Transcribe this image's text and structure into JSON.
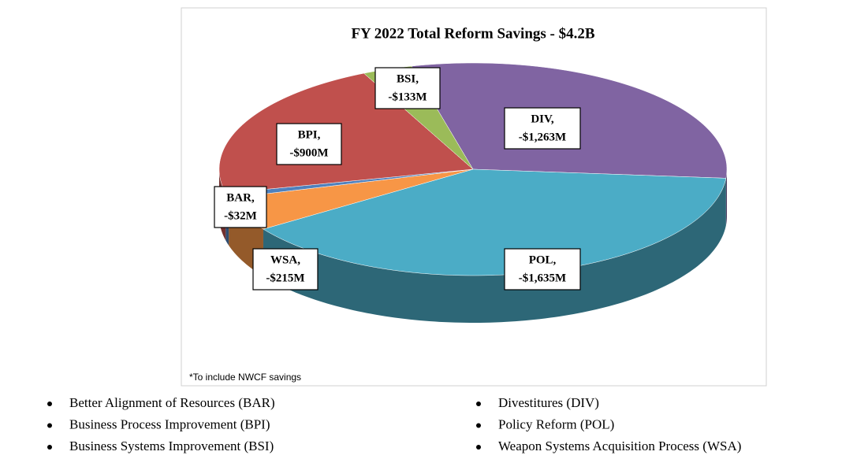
{
  "chart_data": {
    "type": "pie",
    "title": "FY 2022 Total Reform Savings - $4.2B",
    "note": "*To include NWCF savings",
    "categories": [
      "DIV,",
      "POL,",
      "WSA,",
      "BAR,",
      "BPI,",
      "BSI,"
    ],
    "values": [
      -1263,
      -1635,
      -215,
      -32,
      -900,
      -133
    ],
    "value_labels": [
      "-$1,263M",
      "-$1,635M",
      "-$215M",
      "-$32M",
      "-$900M",
      "-$133M"
    ],
    "colors": [
      "#8064a2",
      "#4bacc6",
      "#f79646",
      "#4f81bd",
      "#c0504d",
      "#9bbb59"
    ],
    "legend": [
      "Better Alignment of Resources (BAR)",
      "Business Process Improvement (BPI)",
      "Business Systems Improvement (BSI)",
      "Divestitures (DIV)",
      "Policy Reform (POL)",
      "Weapon Systems Acquisition Process (WSA)"
    ]
  }
}
